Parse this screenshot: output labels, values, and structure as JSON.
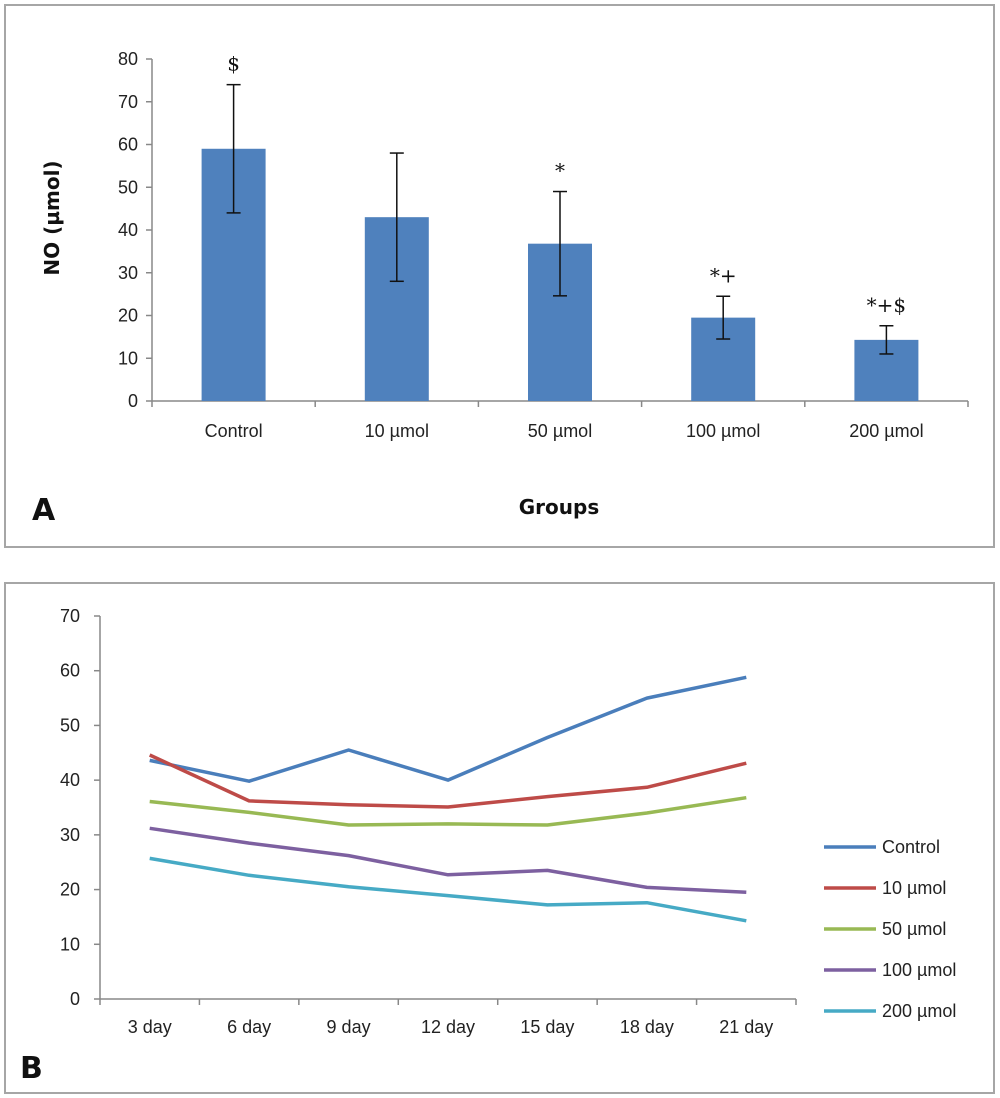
{
  "chart_data": [
    {
      "panel": "A",
      "type": "bar",
      "panel_label": "A",
      "title": "",
      "xlabel": "Groups",
      "ylabel": "NO (µmol)",
      "ylim": [
        0,
        80
      ],
      "yticks": [
        0,
        10,
        20,
        30,
        40,
        50,
        60,
        70,
        80
      ],
      "categories": [
        "Control",
        "10 µmol",
        "50 µmol",
        "100 µmol",
        "200 µmol"
      ],
      "values": [
        59,
        43,
        36.8,
        19.5,
        14.3
      ],
      "errors": [
        15,
        15,
        12.2,
        5,
        3.3
      ],
      "annotations": [
        "$",
        "",
        "*",
        "*+",
        "*+$"
      ],
      "bar_color": "#4f81bd",
      "grid": false
    },
    {
      "panel": "B",
      "type": "line",
      "panel_label": "B",
      "title": "",
      "xlabel": "",
      "ylabel": "",
      "ylim": [
        0,
        70
      ],
      "yticks": [
        0,
        10,
        20,
        30,
        40,
        50,
        60,
        70
      ],
      "categories": [
        "3 day",
        "6 day",
        "9 day",
        "12 day",
        "15 day",
        "18 day",
        "21 day"
      ],
      "legend_position": "right",
      "grid": false,
      "series": [
        {
          "name": "Control",
          "color": "#4a7ebb",
          "values": [
            43.6,
            39.8,
            45.5,
            40,
            47.8,
            55,
            58.8
          ]
        },
        {
          "name": "10  µmol",
          "color": "#be4b48",
          "values": [
            44.6,
            36.2,
            35.5,
            35.1,
            37,
            38.7,
            43.1
          ]
        },
        {
          "name": "50  µmol",
          "color": "#98b954",
          "values": [
            36.1,
            34.1,
            31.8,
            32,
            31.8,
            34,
            36.8
          ]
        },
        {
          "name": "100  µmol",
          "color": "#7d60a0",
          "values": [
            31.2,
            28.5,
            26.2,
            22.7,
            23.5,
            20.4,
            19.5
          ]
        },
        {
          "name": "200  µmol",
          "color": "#46aac5",
          "values": [
            25.7,
            22.6,
            20.5,
            18.9,
            17.2,
            17.6,
            14.3
          ]
        }
      ]
    }
  ]
}
